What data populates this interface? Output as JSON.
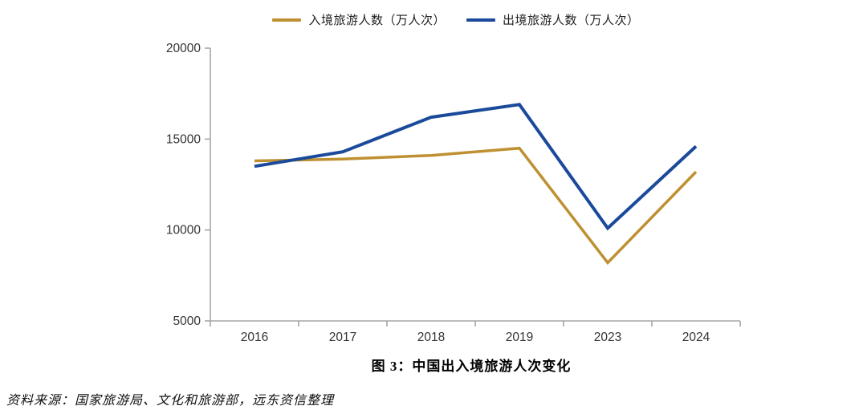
{
  "legend": {
    "items": [
      {
        "label": "入境旅游人数（万人次）",
        "color": "#BF9032"
      },
      {
        "label": "出境旅游人数（万人次）",
        "color": "#1B4A9B"
      }
    ]
  },
  "caption": {
    "title": "图 3：中国出入境旅游人次变化"
  },
  "source": {
    "text": "资料来源：国家旅游局、文化和旅游部，远东资信整理"
  },
  "chart_data": {
    "type": "line",
    "categories": [
      "2016",
      "2017",
      "2018",
      "2019",
      "2023",
      "2024"
    ],
    "series": [
      {
        "name": "入境旅游人数（万人次）",
        "color": "#BF9032",
        "stroke_width": 3.5,
        "values": [
          13800,
          13900,
          14100,
          14500,
          8200,
          13200
        ]
      },
      {
        "name": "出境旅游人数（万人次）",
        "color": "#1B4A9B",
        "stroke_width": 4,
        "values": [
          13500,
          14300,
          16200,
          16900,
          10100,
          14600
        ]
      }
    ],
    "title": "图 3：中国出入境旅游人次变化",
    "xlabel": "",
    "ylabel": "",
    "ylim": [
      5000,
      20000
    ],
    "yticks": [
      5000,
      10000,
      15000,
      20000
    ],
    "grid": false,
    "legend_position": "top-center",
    "axis_color": "#A6A6A6",
    "tick_label_color": "#333333"
  }
}
